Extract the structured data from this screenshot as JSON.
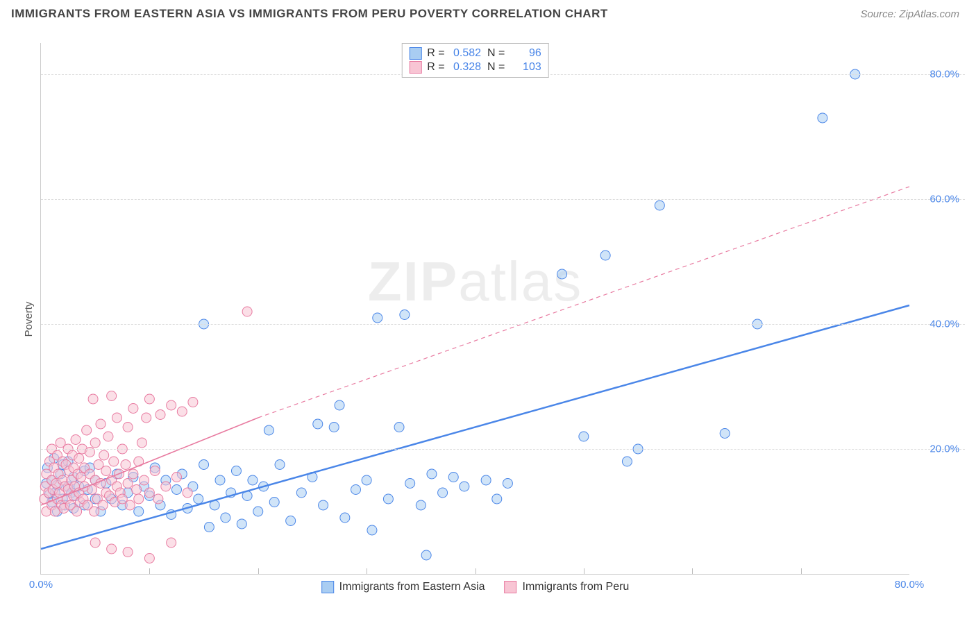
{
  "title": "IMMIGRANTS FROM EASTERN ASIA VS IMMIGRANTS FROM PERU POVERTY CORRELATION CHART",
  "source": "Source: ZipAtlas.com",
  "ylabel": "Poverty",
  "watermark": {
    "bold": "ZIP",
    "rest": "atlas"
  },
  "axes": {
    "xlim": [
      0,
      80
    ],
    "ylim": [
      0,
      85
    ],
    "xticks": [
      0,
      80
    ],
    "xtick_labels": [
      "0.0%",
      "80.0%"
    ],
    "xtick_minor": [
      10,
      20,
      30,
      40,
      50,
      60,
      70
    ],
    "yticks": [
      20,
      40,
      60,
      80
    ],
    "ytick_labels": [
      "20.0%",
      "40.0%",
      "60.0%",
      "80.0%"
    ]
  },
  "colors": {
    "blue_fill": "#a9cdf2",
    "blue_stroke": "#4a86e8",
    "pink_fill": "#f8c5d4",
    "pink_stroke": "#e87aa0",
    "grid": "#dddddd",
    "axis": "#cccccc",
    "tick_text": "#4a86e8",
    "label_text": "#555555",
    "title_text": "#444444",
    "source_text": "#888888"
  },
  "series": [
    {
      "name": "Immigrants from Eastern Asia",
      "color_fill": "#a9cdf2",
      "color_stroke": "#4a86e8",
      "marker_r": 7,
      "marker_opacity": 0.55,
      "R": "0.582",
      "N": "96",
      "trend": {
        "solid": [
          [
            0,
            4
          ],
          [
            80,
            43
          ]
        ],
        "dashed": null,
        "width": 2.5
      },
      "points": [
        [
          0.5,
          14.5
        ],
        [
          0.6,
          17
        ],
        [
          0.8,
          12.8
        ],
        [
          1,
          11.5
        ],
        [
          1,
          15
        ],
        [
          1.2,
          18.5
        ],
        [
          1.3,
          13
        ],
        [
          1.5,
          10
        ],
        [
          1.5,
          14.2
        ],
        [
          1.8,
          16
        ],
        [
          2,
          12
        ],
        [
          2,
          17.5
        ],
        [
          2.2,
          11
        ],
        [
          2.5,
          14
        ],
        [
          2.5,
          18
        ],
        [
          2.8,
          13
        ],
        [
          3,
          10.5
        ],
        [
          3,
          15.5
        ],
        [
          3.2,
          12.5
        ],
        [
          3.5,
          14
        ],
        [
          4,
          11
        ],
        [
          4,
          16.5
        ],
        [
          4.3,
          13.5
        ],
        [
          4.5,
          17
        ],
        [
          5,
          12
        ],
        [
          5,
          15
        ],
        [
          5.5,
          10
        ],
        [
          6,
          14.5
        ],
        [
          6.5,
          12
        ],
        [
          7,
          16
        ],
        [
          7.5,
          11
        ],
        [
          8,
          13
        ],
        [
          8.5,
          15.5
        ],
        [
          9,
          10
        ],
        [
          9.5,
          14
        ],
        [
          10,
          12.5
        ],
        [
          10.5,
          17
        ],
        [
          11,
          11
        ],
        [
          11.5,
          15
        ],
        [
          12,
          9.5
        ],
        [
          12.5,
          13.5
        ],
        [
          13,
          16
        ],
        [
          13.5,
          10.5
        ],
        [
          14,
          14
        ],
        [
          14.5,
          12
        ],
        [
          15,
          17.5
        ],
        [
          15.5,
          7.5
        ],
        [
          16,
          11
        ],
        [
          16.5,
          15
        ],
        [
          17,
          9
        ],
        [
          17.5,
          13
        ],
        [
          18,
          16.5
        ],
        [
          18.5,
          8
        ],
        [
          19,
          12.5
        ],
        [
          19.5,
          15
        ],
        [
          20,
          10
        ],
        [
          20.5,
          14
        ],
        [
          21,
          23
        ],
        [
          21.5,
          11.5
        ],
        [
          22,
          17.5
        ],
        [
          15,
          40
        ],
        [
          23,
          8.5
        ],
        [
          24,
          13
        ],
        [
          25,
          15.5
        ],
        [
          25.5,
          24
        ],
        [
          26,
          11
        ],
        [
          27,
          23.5
        ],
        [
          27.5,
          27
        ],
        [
          28,
          9
        ],
        [
          29,
          13.5
        ],
        [
          30,
          15
        ],
        [
          30.5,
          7
        ],
        [
          31,
          41
        ],
        [
          32,
          12
        ],
        [
          33,
          23.5
        ],
        [
          33.5,
          41.5
        ],
        [
          34,
          14.5
        ],
        [
          35,
          11
        ],
        [
          35.5,
          3
        ],
        [
          36,
          16
        ],
        [
          37,
          13
        ],
        [
          38,
          15.5
        ],
        [
          39,
          14
        ],
        [
          41,
          15
        ],
        [
          42,
          12
        ],
        [
          43,
          14.5
        ],
        [
          48,
          48
        ],
        [
          50,
          22
        ],
        [
          52,
          51
        ],
        [
          54,
          18
        ],
        [
          55,
          20
        ],
        [
          57,
          59
        ],
        [
          63,
          22.5
        ],
        [
          66,
          40
        ],
        [
          72,
          73
        ],
        [
          75,
          80
        ]
      ]
    },
    {
      "name": "Immigrants from Peru",
      "color_fill": "#f8c5d4",
      "color_stroke": "#e87aa0",
      "marker_r": 7,
      "marker_opacity": 0.55,
      "R": "0.328",
      "N": "103",
      "trend": {
        "solid": [
          [
            0,
            11
          ],
          [
            20,
            25
          ]
        ],
        "dashed": [
          [
            20,
            25
          ],
          [
            80,
            62
          ]
        ],
        "width": 1.6
      },
      "points": [
        [
          0.3,
          12
        ],
        [
          0.4,
          14
        ],
        [
          0.5,
          10
        ],
        [
          0.5,
          16
        ],
        [
          0.7,
          13
        ],
        [
          0.8,
          18
        ],
        [
          1,
          11
        ],
        [
          1,
          15
        ],
        [
          1,
          20
        ],
        [
          1.1,
          13.5
        ],
        [
          1.2,
          17
        ],
        [
          1.3,
          10
        ],
        [
          1.4,
          14.5
        ],
        [
          1.5,
          19
        ],
        [
          1.5,
          12
        ],
        [
          1.6,
          16
        ],
        [
          1.7,
          13
        ],
        [
          1.8,
          21
        ],
        [
          1.9,
          11
        ],
        [
          2,
          15
        ],
        [
          2,
          18
        ],
        [
          2.1,
          10.5
        ],
        [
          2.2,
          14
        ],
        [
          2.3,
          17.5
        ],
        [
          2.4,
          12
        ],
        [
          2.5,
          20
        ],
        [
          2.5,
          13.5
        ],
        [
          2.6,
          16.5
        ],
        [
          2.7,
          11
        ],
        [
          2.8,
          15
        ],
        [
          2.9,
          19
        ],
        [
          3,
          12.5
        ],
        [
          3,
          17
        ],
        [
          3.1,
          14
        ],
        [
          3.2,
          21.5
        ],
        [
          3.3,
          10
        ],
        [
          3.4,
          16
        ],
        [
          3.5,
          13
        ],
        [
          3.5,
          18.5
        ],
        [
          3.6,
          11.5
        ],
        [
          3.7,
          15.5
        ],
        [
          3.8,
          20
        ],
        [
          3.9,
          12
        ],
        [
          4,
          17
        ],
        [
          4,
          14
        ],
        [
          4.2,
          23
        ],
        [
          4.3,
          11
        ],
        [
          4.5,
          16
        ],
        [
          4.5,
          19.5
        ],
        [
          4.7,
          13.5
        ],
        [
          4.8,
          28
        ],
        [
          4.9,
          10
        ],
        [
          5,
          15
        ],
        [
          5,
          21
        ],
        [
          5.2,
          12
        ],
        [
          5.3,
          17.5
        ],
        [
          5.5,
          14.5
        ],
        [
          5.5,
          24
        ],
        [
          5.7,
          11
        ],
        [
          5.8,
          19
        ],
        [
          6,
          13
        ],
        [
          6,
          16.5
        ],
        [
          6.2,
          22
        ],
        [
          6.3,
          12.5
        ],
        [
          6.5,
          28.5
        ],
        [
          6.5,
          15
        ],
        [
          6.7,
          18
        ],
        [
          6.8,
          11.5
        ],
        [
          7,
          14
        ],
        [
          7,
          25
        ],
        [
          7.2,
          16
        ],
        [
          7.3,
          13
        ],
        [
          7.5,
          20
        ],
        [
          7.5,
          12
        ],
        [
          7.8,
          17.5
        ],
        [
          8,
          14.5
        ],
        [
          8,
          23.5
        ],
        [
          8.2,
          11
        ],
        [
          8.5,
          16
        ],
        [
          8.5,
          26.5
        ],
        [
          8.8,
          13.5
        ],
        [
          9,
          18
        ],
        [
          9,
          12
        ],
        [
          9.3,
          21
        ],
        [
          9.5,
          15
        ],
        [
          9.7,
          25
        ],
        [
          10,
          13
        ],
        [
          10,
          28
        ],
        [
          10.5,
          16.5
        ],
        [
          10.8,
          12
        ],
        [
          11,
          25.5
        ],
        [
          11.5,
          14
        ],
        [
          12,
          27
        ],
        [
          12.5,
          15.5
        ],
        [
          13,
          26
        ],
        [
          13.5,
          13
        ],
        [
          14,
          27.5
        ],
        [
          5,
          5
        ],
        [
          6.5,
          4
        ],
        [
          8,
          3.5
        ],
        [
          10,
          2.5
        ],
        [
          12,
          5
        ],
        [
          19,
          42
        ]
      ]
    }
  ],
  "legend_bottom": [
    {
      "label": "Immigrants from Eastern Asia",
      "fill": "#a9cdf2",
      "stroke": "#4a86e8"
    },
    {
      "label": "Immigrants from Peru",
      "fill": "#f8c5d4",
      "stroke": "#e87aa0"
    }
  ]
}
